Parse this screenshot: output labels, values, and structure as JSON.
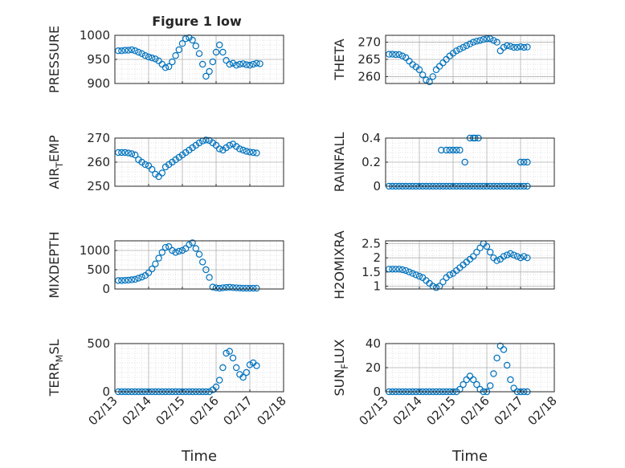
{
  "figure": {
    "title": "Figure 1 low"
  },
  "x_axis": {
    "ticks": [
      "02/13",
      "02/14",
      "02/15",
      "02/16",
      "02/17",
      "02/18"
    ],
    "label": "Time"
  },
  "colors": {
    "marker": "#0072BD",
    "axis": "#262626",
    "grid": "#b0b0b0",
    "minor_grid": "#d8d8d8"
  },
  "chart_data": [
    {
      "type": "scatter",
      "ylabel": "PRESSURE",
      "ylim": [
        900,
        1000
      ],
      "yticks": [
        900,
        950,
        1000
      ],
      "grid": true,
      "x": [
        0.1,
        0.2,
        0.3,
        0.4,
        0.5,
        0.6,
        0.7,
        0.8,
        0.9,
        1.0,
        1.1,
        1.2,
        1.3,
        1.4,
        1.5,
        1.6,
        1.7,
        1.8,
        1.9,
        2.0,
        2.1,
        2.2,
        2.3,
        2.4,
        2.5,
        2.6,
        2.7,
        2.8,
        2.9,
        3.0,
        3.1,
        3.2,
        3.3,
        3.4,
        3.5,
        3.6,
        3.7,
        3.8,
        3.9,
        4.0,
        4.1,
        4.2,
        4.3
      ],
      "y": [
        968,
        968,
        969,
        969,
        970,
        968,
        965,
        962,
        958,
        955,
        953,
        951,
        947,
        940,
        933,
        935,
        945,
        958,
        970,
        983,
        993,
        995,
        990,
        978,
        962,
        940,
        915,
        925,
        945,
        965,
        980,
        965,
        948,
        940,
        942,
        938,
        940,
        941,
        939,
        938,
        940,
        942,
        941
      ]
    },
    {
      "type": "scatter",
      "ylabel": "THETA",
      "ylim": [
        258,
        272
      ],
      "yticks": [
        260,
        265,
        270
      ],
      "grid": true,
      "x": [
        0.1,
        0.2,
        0.3,
        0.4,
        0.5,
        0.6,
        0.7,
        0.8,
        0.9,
        1.0,
        1.1,
        1.2,
        1.3,
        1.4,
        1.5,
        1.6,
        1.7,
        1.8,
        1.9,
        2.0,
        2.1,
        2.2,
        2.3,
        2.4,
        2.5,
        2.6,
        2.7,
        2.8,
        2.9,
        3.0,
        3.1,
        3.2,
        3.3,
        3.4,
        3.5,
        3.6,
        3.7,
        3.8,
        3.9,
        4.0,
        4.1,
        4.2
      ],
      "y": [
        266.5,
        266.5,
        266.4,
        266.4,
        266,
        265.5,
        264.5,
        263.5,
        262.8,
        262,
        260.5,
        259,
        258.5,
        260,
        262,
        263,
        264,
        265,
        266,
        266.8,
        267.5,
        268,
        268.5,
        269,
        269.5,
        270,
        270.3,
        270.5,
        270.8,
        271,
        271,
        270.5,
        270,
        267.5,
        268.5,
        269,
        268.8,
        268.5,
        268.5,
        268.7,
        268.5,
        268.6
      ]
    },
    {
      "type": "scatter",
      "ylabel": "AIR_TEMP",
      "ylim": [
        250,
        270
      ],
      "yticks": [
        250,
        260,
        270
      ],
      "grid": true,
      "x": [
        0.1,
        0.2,
        0.3,
        0.4,
        0.5,
        0.6,
        0.7,
        0.8,
        0.9,
        1.0,
        1.1,
        1.2,
        1.3,
        1.4,
        1.5,
        1.6,
        1.7,
        1.8,
        1.9,
        2.0,
        2.1,
        2.2,
        2.3,
        2.4,
        2.5,
        2.6,
        2.7,
        2.8,
        2.9,
        3.0,
        3.1,
        3.2,
        3.3,
        3.4,
        3.5,
        3.6,
        3.7,
        3.8,
        3.9,
        4.0,
        4.1,
        4.2
      ],
      "y": [
        264,
        264,
        264,
        263.8,
        263.5,
        263,
        261,
        260,
        259,
        258.5,
        257,
        255,
        254,
        255.5,
        258,
        259,
        260,
        261,
        262,
        263,
        264,
        265,
        266,
        267,
        268,
        268.8,
        269.2,
        269,
        268,
        267,
        265.5,
        265,
        266,
        267,
        267.5,
        266.5,
        265.5,
        265,
        264.5,
        264.2,
        264,
        263.8
      ]
    },
    {
      "type": "scatter",
      "ylabel": "RAINFALL",
      "ylim": [
        0,
        0.4
      ],
      "yticks": [
        0,
        0.2,
        0.4
      ],
      "grid": true,
      "x": [
        0.1,
        0.2,
        0.3,
        0.4,
        0.5,
        0.6,
        0.7,
        0.8,
        0.9,
        1.0,
        1.1,
        1.2,
        1.3,
        1.4,
        1.5,
        1.6,
        1.7,
        1.8,
        1.9,
        2.0,
        2.1,
        2.2,
        2.3,
        2.4,
        2.5,
        2.6,
        2.7,
        2.8,
        2.9,
        3.0,
        3.1,
        3.2,
        3.3,
        3.4,
        3.5,
        3.6,
        3.7,
        3.8,
        3.9,
        4.0,
        4.1,
        4.2,
        1.65,
        1.8,
        1.9,
        2.0,
        2.1,
        2.2,
        2.35,
        2.5,
        2.6,
        2.65,
        2.75,
        4.0,
        4.1,
        4.2
      ],
      "y": [
        0,
        0,
        0,
        0,
        0,
        0,
        0,
        0,
        0,
        0,
        0,
        0,
        0,
        0,
        0,
        0,
        0,
        0,
        0,
        0,
        0,
        0,
        0,
        0,
        0,
        0,
        0,
        0,
        0,
        0,
        0,
        0,
        0,
        0,
        0,
        0,
        0,
        0,
        0,
        0,
        0,
        0,
        0.3,
        0.3,
        0.3,
        0.3,
        0.3,
        0.3,
        0.2,
        0.4,
        0.4,
        0.4,
        0.4,
        0.2,
        0.2,
        0.2
      ]
    },
    {
      "type": "scatter",
      "ylabel": "MIXDEPTH",
      "ylim": [
        0,
        1250
      ],
      "yticks": [
        0,
        500,
        1000
      ],
      "grid": true,
      "x": [
        0.1,
        0.2,
        0.3,
        0.4,
        0.5,
        0.6,
        0.7,
        0.8,
        0.9,
        1.0,
        1.1,
        1.2,
        1.3,
        1.4,
        1.5,
        1.6,
        1.7,
        1.8,
        1.9,
        2.0,
        2.1,
        2.2,
        2.3,
        2.4,
        2.5,
        2.6,
        2.7,
        2.8,
        2.9,
        3.0,
        3.1,
        3.2,
        3.3,
        3.4,
        3.5,
        3.6,
        3.7,
        3.8,
        3.9,
        4.0,
        4.1,
        4.2
      ],
      "y": [
        220,
        220,
        225,
        230,
        240,
        250,
        280,
        310,
        350,
        420,
        520,
        650,
        800,
        950,
        1080,
        1100,
        1000,
        950,
        980,
        1000,
        1050,
        1150,
        1200,
        1050,
        900,
        700,
        500,
        300,
        50,
        30,
        20,
        30,
        40,
        45,
        35,
        30,
        25,
        20,
        20,
        20,
        20,
        20
      ]
    },
    {
      "type": "scatter",
      "ylabel": "H2OMIXRA",
      "ylim": [
        0.9,
        2.6
      ],
      "yticks": [
        1,
        1.5,
        2,
        2.5
      ],
      "grid": true,
      "x": [
        0.1,
        0.2,
        0.3,
        0.4,
        0.5,
        0.6,
        0.7,
        0.8,
        0.9,
        1.0,
        1.1,
        1.2,
        1.3,
        1.4,
        1.5,
        1.6,
        1.7,
        1.8,
        1.9,
        2.0,
        2.1,
        2.2,
        2.3,
        2.4,
        2.5,
        2.6,
        2.7,
        2.8,
        2.9,
        3.0,
        3.1,
        3.2,
        3.3,
        3.4,
        3.5,
        3.6,
        3.7,
        3.8,
        3.9,
        4.0,
        4.1,
        4.2
      ],
      "y": [
        1.6,
        1.6,
        1.6,
        1.6,
        1.58,
        1.55,
        1.5,
        1.45,
        1.4,
        1.35,
        1.3,
        1.2,
        1.1,
        1.0,
        0.95,
        1.0,
        1.15,
        1.3,
        1.4,
        1.45,
        1.55,
        1.65,
        1.75,
        1.85,
        1.95,
        2.05,
        2.2,
        2.35,
        2.5,
        2.4,
        2.2,
        2.0,
        1.9,
        1.95,
        2.05,
        2.1,
        2.15,
        2.1,
        2.05,
        2.0,
        2.05,
        2.0
      ]
    },
    {
      "type": "scatter",
      "ylabel": "TERR_MSL",
      "ylim": [
        0,
        500
      ],
      "yticks": [
        0,
        500
      ],
      "grid": true,
      "x": [
        0.1,
        0.2,
        0.3,
        0.4,
        0.5,
        0.6,
        0.7,
        0.8,
        0.9,
        1.0,
        1.1,
        1.2,
        1.3,
        1.4,
        1.5,
        1.6,
        1.7,
        1.8,
        1.9,
        2.0,
        2.1,
        2.2,
        2.3,
        2.4,
        2.5,
        2.6,
        2.7,
        2.8,
        2.9,
        3.0,
        3.1,
        3.2,
        3.3,
        3.4,
        3.5,
        3.6,
        3.7,
        3.8,
        3.9,
        4.0,
        4.1,
        4.2
      ],
      "y": [
        0,
        0,
        0,
        0,
        0,
        0,
        0,
        0,
        0,
        0,
        0,
        0,
        0,
        0,
        0,
        0,
        0,
        0,
        0,
        0,
        0,
        0,
        0,
        0,
        0,
        0,
        0,
        0,
        20,
        50,
        120,
        250,
        400,
        420,
        350,
        250,
        180,
        150,
        200,
        280,
        300,
        270
      ]
    },
    {
      "type": "scatter",
      "ylabel": "SUN_FLUX",
      "ylim": [
        0,
        40
      ],
      "yticks": [
        0,
        20,
        40
      ],
      "grid": true,
      "x": [
        0.1,
        0.2,
        0.3,
        0.4,
        0.5,
        0.6,
        0.7,
        0.8,
        0.9,
        1.0,
        1.1,
        1.2,
        1.3,
        1.4,
        1.5,
        1.6,
        1.7,
        1.8,
        1.9,
        2.0,
        2.1,
        2.2,
        2.3,
        2.4,
        2.5,
        2.6,
        2.7,
        2.8,
        2.9,
        3.0,
        3.1,
        3.2,
        3.3,
        3.4,
        3.5,
        3.6,
        3.7,
        3.8,
        3.9,
        4.0,
        4.1,
        4.2
      ],
      "y": [
        0,
        0,
        0,
        0,
        0,
        0,
        0,
        0,
        0,
        0,
        0,
        0,
        0,
        0,
        0,
        0,
        0,
        0,
        0,
        0,
        0,
        2,
        6,
        10,
        13,
        10,
        6,
        2,
        0,
        0,
        5,
        15,
        28,
        38,
        35,
        22,
        10,
        3,
        0,
        0,
        0,
        0
      ]
    }
  ]
}
